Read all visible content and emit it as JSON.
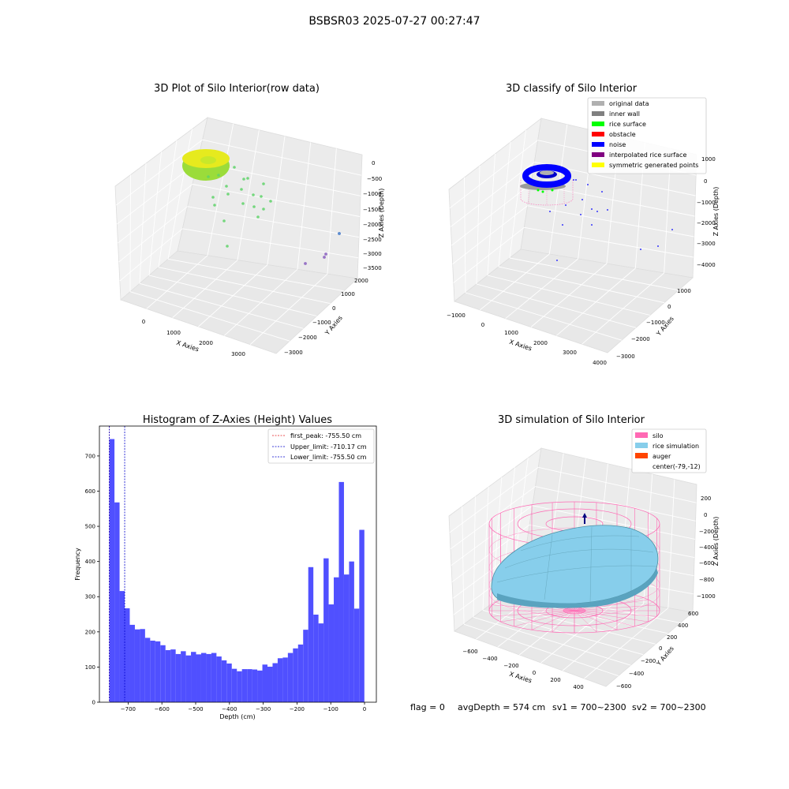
{
  "figure": {
    "suptitle": "BSBSR03 2025-07-27 00:27:47",
    "footer": {
      "flag": "flag = 0",
      "avg_depth": "avgDepth = 574 cm",
      "sv1": "sv1 = 700~2300",
      "sv2": "sv2 = 700~2300"
    }
  },
  "colors": {
    "hist_bar": "#5050ff",
    "first_peak": "#e41a1c",
    "limit": "#0000cc",
    "silo": "#ff69b4",
    "rice_sim": "#87ceeb",
    "auger": "#ff4500",
    "original": "#b0b0b0",
    "inner_wall": "#808080",
    "rice_surface": "#00ff00",
    "obstacle": "#ff0000",
    "noise": "#0000ff",
    "interp": "#800080",
    "symmetric": "#ffff00"
  },
  "chart_data": [
    {
      "type": "scatter",
      "subtype": "3d",
      "title": "3D Plot of Silo Interior(row data)",
      "xlabel": "X Axies",
      "ylabel": "Y Axies",
      "zlabel": "Z Axies (Depth)",
      "x_ticks": [
        "0",
        "1000",
        "2000",
        "3000"
      ],
      "y_ticks": [
        "2000",
        "1000",
        "0",
        "−1000",
        "−2000",
        "−3000"
      ],
      "z_ticks": [
        "0",
        "−500",
        "−1000",
        "−1500",
        "−2000",
        "−2500",
        "−3000",
        "−3500"
      ],
      "grid": true
    },
    {
      "type": "scatter",
      "subtype": "3d",
      "title": "3D classify of Silo Interior",
      "xlabel": "X Axies",
      "ylabel": "Y Axies",
      "zlabel": "Z Axies (Depth)",
      "x_ticks": [
        "−1000",
        "0",
        "1000",
        "2000",
        "3000",
        "4000"
      ],
      "y_ticks": [
        "1000",
        "0",
        "−1000",
        "−2000",
        "−3000"
      ],
      "z_ticks": [
        "1000",
        "0",
        "−1000",
        "−2000",
        "−3000",
        "−4000"
      ],
      "legend": [
        "original data",
        "inner wall",
        "rice surface",
        "obstacle",
        "noise",
        "interpolated rice surface",
        "symmetric generated points"
      ],
      "legend_position": "top-right",
      "grid": true
    },
    {
      "type": "bar",
      "subtype": "histogram",
      "title": "Histogram of Z-Axies (Height) Values",
      "xlabel": "Depth (cm)",
      "ylabel": "Frequency",
      "xlim": [
        -785,
        35
      ],
      "ylim": [
        0,
        785
      ],
      "x_ticks": [
        -700,
        -600,
        -500,
        -400,
        -300,
        -200,
        -100,
        0
      ],
      "x_tick_labels": [
        "−700",
        "−600",
        "−500",
        "−400",
        "−300",
        "−200",
        "−100",
        "0"
      ],
      "y_ticks": [
        0,
        100,
        200,
        300,
        400,
        500,
        600,
        700
      ],
      "bin_start": -755.5,
      "bin_width": 15.1,
      "values": [
        748,
        568,
        316,
        267,
        220,
        207,
        208,
        183,
        175,
        173,
        162,
        148,
        150,
        137,
        145,
        133,
        143,
        136,
        140,
        137,
        140,
        130,
        119,
        110,
        95,
        88,
        94,
        94,
        93,
        90,
        107,
        101,
        111,
        125,
        127,
        140,
        153,
        164,
        206,
        384,
        249,
        224,
        409,
        278,
        355,
        626,
        363,
        400,
        266,
        490
      ],
      "lines": [
        {
          "label": "first_peak: -755.50 cm",
          "x": -755.5,
          "color": "red"
        },
        {
          "label": "Upper_limit: -710.17 cm",
          "x": -710.17,
          "color": "blue"
        },
        {
          "label": "Lower_limit: -755.50 cm",
          "x": -755.5,
          "color": "blue"
        }
      ],
      "legend_position": "top-right",
      "grid": false
    },
    {
      "type": "area",
      "subtype": "3d-surface",
      "title": "3D simulation of Silo Interior",
      "xlabel": "X Axies",
      "ylabel": "Y Axies",
      "zlabel": "Z Axies (Depth)",
      "x_ticks": [
        "−600",
        "−400",
        "−200",
        "0",
        "200",
        "400"
      ],
      "y_ticks": [
        "600",
        "400",
        "200",
        "0",
        "−200",
        "−400",
        "−600"
      ],
      "z_ticks": [
        "200",
        "0",
        "−200",
        "−400",
        "−600",
        "−800",
        "−1000"
      ],
      "legend": [
        "silo",
        "rice simulation",
        "auger",
        "center(-79,-12)"
      ],
      "legend_position": "top-right",
      "grid": true
    }
  ]
}
